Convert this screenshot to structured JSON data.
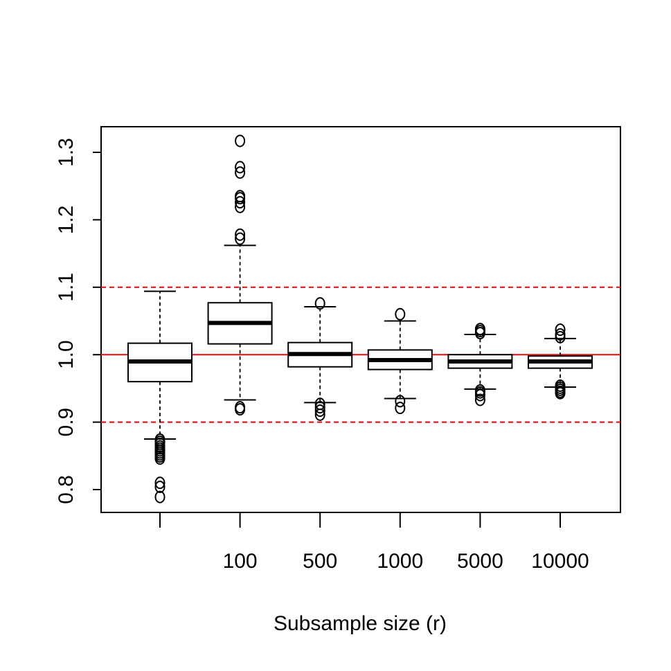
{
  "chart_data": {
    "type": "boxplot",
    "xlabel": "Subsample size (r)",
    "ylabel": "",
    "ylim": [
      0.77,
      1.34
    ],
    "yticks": [
      0.8,
      0.9,
      1.0,
      1.1,
      1.2,
      1.3
    ],
    "ytick_labels": [
      "0.8",
      "0.9",
      "1.0",
      "1.1",
      "1.2",
      "1.3"
    ],
    "categories": [
      "",
      "100",
      "500",
      "1000",
      "5000",
      "10000"
    ],
    "boxes": [
      {
        "whisker_low": 0.875,
        "q1": 0.96,
        "median": 0.99,
        "q3": 1.017,
        "whisker_high": 1.094,
        "outliers": [
          0.874,
          0.871,
          0.868,
          0.864,
          0.861,
          0.858,
          0.855,
          0.852,
          0.849,
          0.846,
          0.81,
          0.804,
          0.789
        ]
      },
      {
        "whisker_low": 0.933,
        "q1": 1.016,
        "median": 1.047,
        "q3": 1.077,
        "whisker_high": 1.162,
        "outliers": [
          0.922,
          0.919,
          1.172,
          1.178,
          1.219,
          1.226,
          1.232,
          1.235,
          1.27,
          1.278,
          1.317
        ]
      },
      {
        "whisker_low": 0.929,
        "q1": 0.982,
        "median": 1.001,
        "q3": 1.018,
        "whisker_high": 1.071,
        "outliers": [
          0.927,
          0.922,
          0.917,
          0.911,
          1.076
        ]
      },
      {
        "whisker_low": 0.935,
        "q1": 0.978,
        "median": 0.992,
        "q3": 1.007,
        "whisker_high": 1.05,
        "outliers": [
          0.931,
          0.921,
          1.06
        ]
      },
      {
        "whisker_low": 0.949,
        "q1": 0.98,
        "median": 0.99,
        "q3": 1.0,
        "whisker_high": 1.03,
        "outliers": [
          0.947,
          0.944,
          0.94,
          0.933,
          1.032,
          1.035,
          1.038
        ]
      },
      {
        "whisker_low": 0.952,
        "q1": 0.98,
        "median": 0.99,
        "q3": 0.998,
        "whisker_high": 1.024,
        "outliers": [
          0.954,
          0.951,
          0.948,
          0.945,
          0.943,
          1.026,
          1.03,
          1.037
        ]
      }
    ],
    "reference_lines": [
      {
        "y": 1.0,
        "style": "solid",
        "color": "#e8161b"
      },
      {
        "y": 1.1,
        "style": "dashed",
        "color": "#e8161b"
      },
      {
        "y": 0.9,
        "style": "dashed",
        "color": "#e8161b"
      }
    ],
    "grid": false
  }
}
